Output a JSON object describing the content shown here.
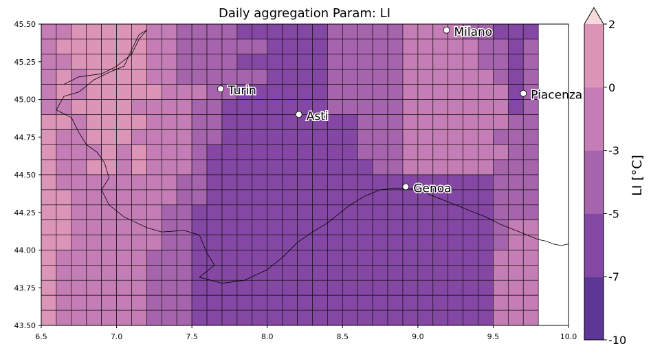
{
  "chart_data": {
    "type": "heatmap",
    "title": "Daily aggregation Param: LI",
    "xlim": [
      6.5,
      10.0
    ],
    "ylim": [
      43.5,
      45.5
    ],
    "x_ticks": [
      "6.5",
      "7.0",
      "7.5",
      "8.0",
      "8.5",
      "9.0",
      "9.5",
      "10.0"
    ],
    "y_ticks": [
      "43.50",
      "43.75",
      "44.00",
      "44.25",
      "44.50",
      "44.75",
      "45.00",
      "45.25",
      "45.50"
    ],
    "colorbar": {
      "label": "LI [°C]",
      "levels": [
        -10,
        -7,
        -5,
        -3,
        0,
        2
      ],
      "tick_labels": [
        "-10",
        "-7",
        "-5",
        "-3",
        "0",
        "2"
      ],
      "colors": [
        "#5c3795",
        "#8447a4",
        "#a564ac",
        "#c47db5",
        "#dd95b7"
      ],
      "extend": "max",
      "extend_color": "#f5d9dd"
    },
    "grid": {
      "lon_start": 6.5,
      "lon_step": 0.1,
      "lat_start": 43.5,
      "lat_step": 0.1,
      "rows_north_to_south": [
        "334444433222211111122222333322111",
        "344444433222222111122222333332212",
        "334444433222211111122222333332212",
        "343444433222222111122222333333212",
        "343444443332211111122222333333312",
        "334444333322111111122222333333312",
        "443444433322111111111222333333322",
        "433444333322111111111222333333222",
        "433343433321111111111222333333322",
        "433443433321111111111122333333222",
        "433333333221111111111111111111222",
        "443333333221111111111111111111222",
        "443333332211111111111111111111222",
        "443333332211111111111111111111233",
        "443333332211111111111111111111233",
        "433333322211111111111111111111333",
        "433333322211111111111111111111333",
        "433333322211111111111111111111333",
        "433333322211111111111111111111333",
        "433333322211111111111111111111333"
      ]
    },
    "cities": [
      {
        "name": "Milano",
        "lon": 9.19,
        "lat": 45.46
      },
      {
        "name": "Turin",
        "lon": 7.69,
        "lat": 45.07
      },
      {
        "name": "Asti",
        "lon": 8.21,
        "lat": 44.9
      },
      {
        "name": "Piacenza",
        "lon": 9.7,
        "lat": 45.04
      },
      {
        "name": "Genoa",
        "lon": 8.92,
        "lat": 44.42
      }
    ],
    "coastline": [
      [
        8.45,
        44.22
      ],
      [
        8.55,
        44.3
      ],
      [
        8.65,
        44.36
      ],
      [
        8.75,
        44.4
      ],
      [
        8.85,
        44.41
      ],
      [
        8.95,
        44.41
      ],
      [
        9.05,
        44.38
      ],
      [
        9.15,
        44.34
      ],
      [
        9.25,
        44.3
      ],
      [
        9.35,
        44.26
      ],
      [
        9.45,
        44.22
      ],
      [
        9.55,
        44.17
      ],
      [
        9.65,
        44.13
      ],
      [
        9.75,
        44.09
      ],
      [
        9.8,
        44.07
      ],
      [
        9.85,
        44.06
      ],
      [
        9.9,
        44.04
      ],
      [
        9.95,
        44.03
      ],
      [
        10.0,
        44.04
      ]
    ],
    "border": [
      [
        6.65,
        45.1
      ],
      [
        6.75,
        45.15
      ],
      [
        6.9,
        45.17
      ],
      [
        7.0,
        45.22
      ],
      [
        7.1,
        45.3
      ],
      [
        7.15,
        45.4
      ],
      [
        7.2,
        45.46
      ],
      [
        7.15,
        45.43
      ],
      [
        7.1,
        45.33
      ],
      [
        7.05,
        45.22
      ],
      [
        6.95,
        45.18
      ],
      [
        6.85,
        45.13
      ],
      [
        6.75,
        45.05
      ],
      [
        6.65,
        45.02
      ],
      [
        6.6,
        44.93
      ],
      [
        6.7,
        44.88
      ],
      [
        6.75,
        44.78
      ],
      [
        6.8,
        44.7
      ],
      [
        6.87,
        44.65
      ],
      [
        6.92,
        44.58
      ],
      [
        6.95,
        44.48
      ],
      [
        6.9,
        44.4
      ],
      [
        6.95,
        44.3
      ],
      [
        7.05,
        44.22
      ],
      [
        7.2,
        44.15
      ],
      [
        7.3,
        44.12
      ],
      [
        7.45,
        44.13
      ],
      [
        7.55,
        44.1
      ],
      [
        7.6,
        43.98
      ],
      [
        7.65,
        43.9
      ],
      [
        7.55,
        43.82
      ],
      [
        7.7,
        43.78
      ],
      [
        7.85,
        43.8
      ],
      [
        8.0,
        43.87
      ],
      [
        8.1,
        43.95
      ],
      [
        8.2,
        44.05
      ],
      [
        8.3,
        44.12
      ],
      [
        8.4,
        44.18
      ],
      [
        8.45,
        44.22
      ]
    ]
  }
}
